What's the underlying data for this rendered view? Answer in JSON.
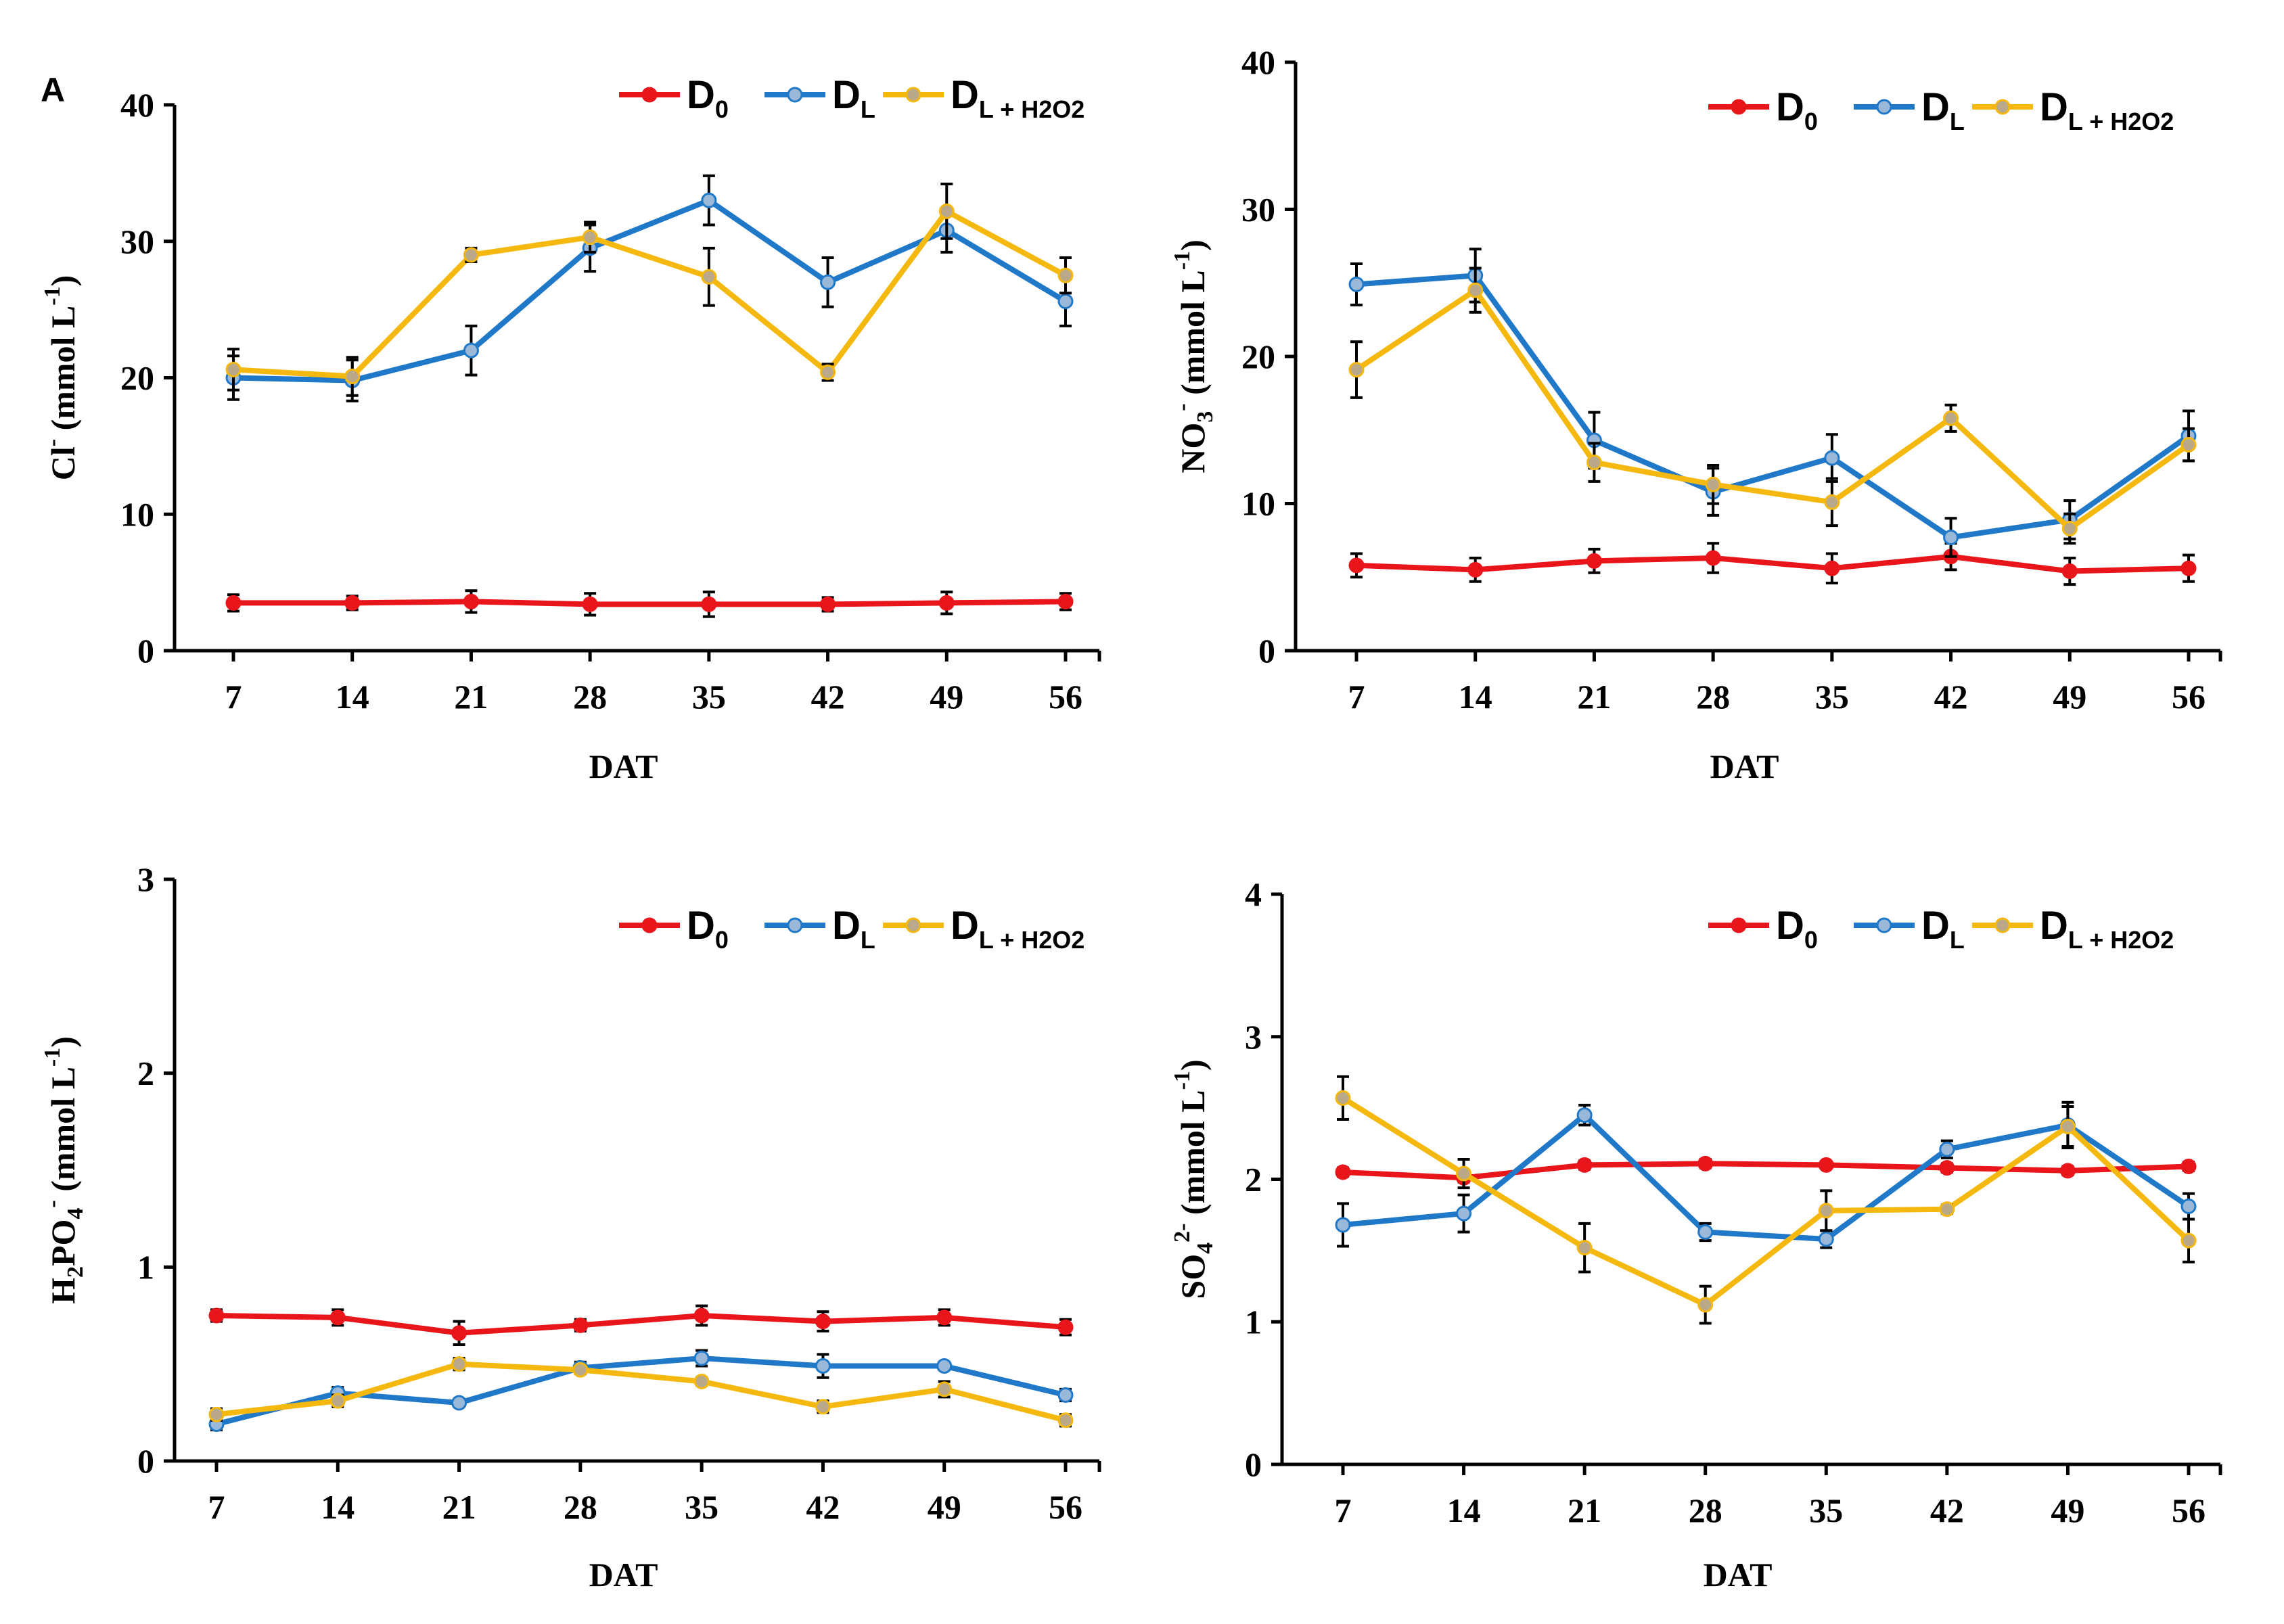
{
  "figure": {
    "panel_label": "A"
  },
  "legend_labels": {
    "D0": {
      "main": "D",
      "sub": "0"
    },
    "DL": {
      "main": "D",
      "sub": "L"
    },
    "DLH2O2": {
      "main": "D",
      "sub": "L + H2O2"
    }
  },
  "colors": {
    "D0": "#e8161b",
    "DL": "#1f78c8",
    "DLH2O2": "#f4b80f",
    "axis": "#000000",
    "errorbar": "#000000"
  },
  "chart_data": [
    {
      "id": "cl",
      "type": "line",
      "xlabel": "DAT",
      "ylabel": {
        "pre": "Cl",
        "pre_sub": "",
        "pre_sup": "-",
        "post": " (mmol L",
        "post_sup": "-1",
        "end": ")"
      },
      "ylim": [
        0,
        40
      ],
      "yticks": [
        0,
        10,
        20,
        30,
        40
      ],
      "categories": [
        "7",
        "14",
        "21",
        "28",
        "35",
        "42",
        "49",
        "56"
      ],
      "series": [
        {
          "key": "D0",
          "values": [
            3.5,
            3.5,
            3.6,
            3.4,
            3.4,
            3.4,
            3.5,
            3.6
          ],
          "errors": [
            0.6,
            0.5,
            0.8,
            0.8,
            0.9,
            0.5,
            0.8,
            0.6
          ]
        },
        {
          "key": "DL",
          "values": [
            20.0,
            19.8,
            22.0,
            29.5,
            33.0,
            27.0,
            30.8,
            25.6
          ],
          "errors": [
            1.6,
            1.5,
            1.8,
            1.7,
            1.8,
            1.8,
            1.6,
            1.8
          ]
        },
        {
          "key": "DLH2O2",
          "values": [
            20.6,
            20.1,
            29.0,
            30.3,
            27.4,
            20.4,
            32.2,
            27.5
          ],
          "errors": [
            1.5,
            1.4,
            0.5,
            1.1,
            2.1,
            0.6,
            2.0,
            1.3
          ]
        }
      ]
    },
    {
      "id": "no3",
      "type": "line",
      "xlabel": "DAT",
      "ylabel": {
        "pre": "NO",
        "pre_sub": "3",
        "pre_sup": "-",
        "post": " (mmol L",
        "post_sup": "-1",
        "end": ")"
      },
      "ylim": [
        0,
        40
      ],
      "yticks": [
        0,
        10,
        20,
        30,
        40
      ],
      "categories": [
        "7",
        "14",
        "21",
        "28",
        "35",
        "42",
        "49",
        "56"
      ],
      "series": [
        {
          "key": "D0",
          "values": [
            5.8,
            5.5,
            6.1,
            6.3,
            5.6,
            6.4,
            5.4,
            5.6
          ],
          "errors": [
            0.8,
            0.8,
            0.8,
            1.0,
            1.0,
            0.9,
            0.9,
            0.9
          ]
        },
        {
          "key": "DL",
          "values": [
            24.9,
            25.5,
            14.3,
            10.8,
            13.1,
            7.7,
            8.9,
            14.6
          ],
          "errors": [
            1.4,
            1.8,
            1.9,
            1.6,
            1.6,
            1.3,
            1.3,
            1.7
          ]
        },
        {
          "key": "DLH2O2",
          "values": [
            19.1,
            24.5,
            12.8,
            11.3,
            10.1,
            15.8,
            8.3,
            14.0
          ],
          "errors": [
            1.9,
            1.5,
            1.3,
            1.3,
            1.6,
            0.9,
            1.0,
            1.1
          ]
        }
      ]
    },
    {
      "id": "h2po4",
      "type": "line",
      "xlabel": "DAT",
      "ylabel": {
        "pre": "H",
        "pre_sub": "2",
        "pre_mid": "PO",
        "pre_sub2": "4",
        "pre_sup": "-",
        "post": " (mmol L",
        "post_sup": "-1",
        "end": ")"
      },
      "ylim": [
        0,
        3
      ],
      "yticks": [
        0,
        1,
        2,
        3
      ],
      "categories": [
        "7",
        "14",
        "21",
        "28",
        "35",
        "42",
        "49",
        "56"
      ],
      "series": [
        {
          "key": "D0",
          "values": [
            0.75,
            0.74,
            0.66,
            0.7,
            0.75,
            0.72,
            0.74,
            0.69
          ],
          "errors": [
            0.03,
            0.04,
            0.06,
            0.03,
            0.05,
            0.05,
            0.04,
            0.04
          ]
        },
        {
          "key": "DL",
          "values": [
            0.19,
            0.35,
            0.3,
            0.48,
            0.53,
            0.49,
            0.49,
            0.34
          ],
          "errors": [
            0.03,
            0.03,
            0.02,
            0.03,
            0.04,
            0.06,
            0.02,
            0.03
          ]
        },
        {
          "key": "DLH2O2",
          "values": [
            0.24,
            0.31,
            0.5,
            0.47,
            0.41,
            0.28,
            0.37,
            0.21
          ],
          "errors": [
            0.03,
            0.03,
            0.03,
            0.02,
            0.02,
            0.03,
            0.04,
            0.03
          ]
        }
      ]
    },
    {
      "id": "so4",
      "type": "line",
      "xlabel": "DAT",
      "ylabel": {
        "pre": "SO",
        "pre_sub": "4",
        "pre_sup": "2-",
        "post": " (mmol L",
        "post_sup": "-1",
        "end": ")"
      },
      "ylim": [
        0,
        4
      ],
      "yticks": [
        0,
        1,
        2,
        3,
        4
      ],
      "categories": [
        "7",
        "14",
        "21",
        "28",
        "35",
        "42",
        "49",
        "56"
      ],
      "series": [
        {
          "key": "D0",
          "values": [
            2.05,
            2.01,
            2.1,
            2.11,
            2.1,
            2.08,
            2.06,
            2.09
          ],
          "errors": [
            0.03,
            0.03,
            0.03,
            0.03,
            0.02,
            0.03,
            0.03,
            0.03
          ]
        },
        {
          "key": "DL",
          "values": [
            1.68,
            1.76,
            2.45,
            1.63,
            1.58,
            2.21,
            2.38,
            1.81
          ],
          "errors": [
            0.15,
            0.13,
            0.07,
            0.06,
            0.06,
            0.06,
            0.16,
            0.09
          ]
        },
        {
          "key": "DLH2O2",
          "values": [
            2.57,
            2.04,
            1.52,
            1.12,
            1.78,
            1.79,
            2.37,
            1.57
          ],
          "errors": [
            0.15,
            0.1,
            0.17,
            0.13,
            0.14,
            0.03,
            0.14,
            0.15
          ]
        }
      ]
    }
  ]
}
